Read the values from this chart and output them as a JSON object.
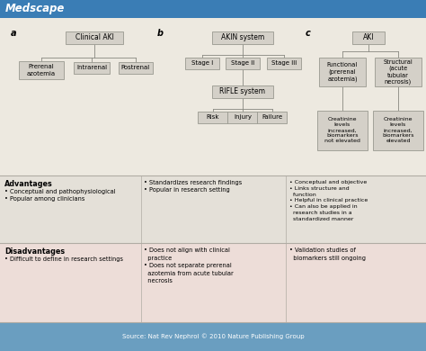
{
  "medscape_header": "Medscape",
  "header_bg": "#3a7db5",
  "header_text_color": "#ffffff",
  "bg_color": "#ede9e0",
  "box_fill": "#d4d0c8",
  "box_edge": "#999990",
  "adv_bg": "#e4e0d8",
  "dis_bg": "#edddd8",
  "source_bg": "#6a9ec0",
  "source_text_color": "#ffffff",
  "source_text": "Source: Nat Rev Nephrol © 2010 Nature Publishing Group",
  "section_a_label": "a",
  "section_b_label": "b",
  "section_c_label": "c",
  "advantages_title": "Advantages",
  "disadvantages_title": "Disadvantages",
  "adv_col1": "• Conceptual and pathophysiological\n• Popular among clinicians",
  "adv_col2": "• Standardizes research findings\n• Popular in research setting",
  "adv_col3": "• Conceptual and objective\n• Links structure and\n  function\n• Helpful in clinical practice\n• Can also be applied in\n  research studies in a\n  standardized manner",
  "dis_col1": "• Difficult to define in research settings",
  "dis_col2": "• Does not align with clinical\n  practice\n• Does not separate prerenal\n  azotemia from acute tubular\n  necrosis",
  "dis_col3": "• Validation studies of\n  biomarkers still ongoing"
}
